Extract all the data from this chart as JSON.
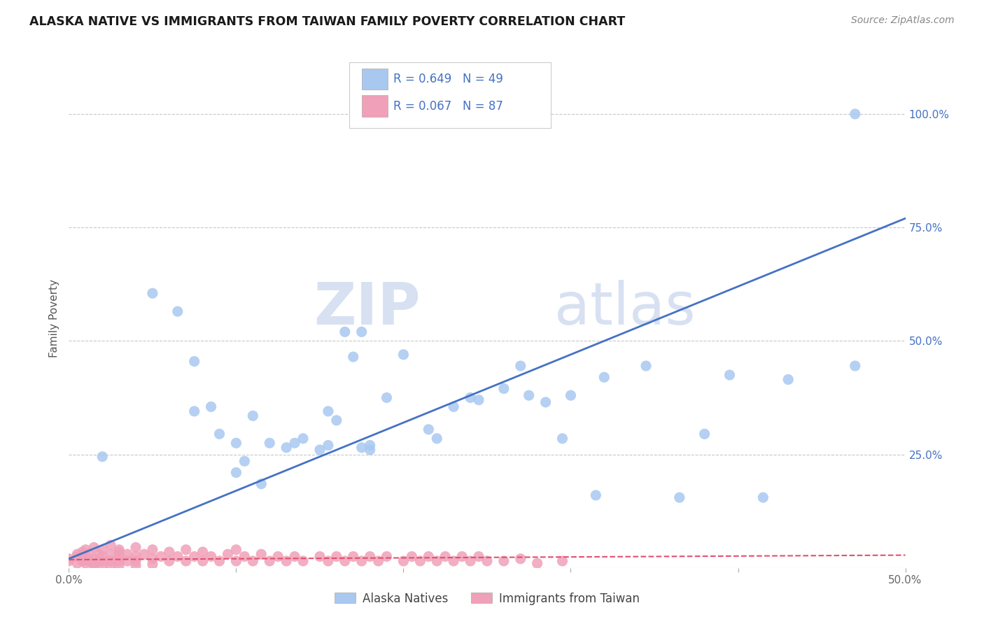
{
  "title": "ALASKA NATIVE VS IMMIGRANTS FROM TAIWAN FAMILY POVERTY CORRELATION CHART",
  "source": "Source: ZipAtlas.com",
  "ylabel": "Family Poverty",
  "xlim": [
    0.0,
    0.5
  ],
  "ylim": [
    0.0,
    1.1
  ],
  "ytick_vals": [
    0.0,
    0.25,
    0.5,
    0.75,
    1.0
  ],
  "xtick_vals": [
    0.0,
    0.1,
    0.2,
    0.3,
    0.4,
    0.5
  ],
  "xtick_labels": [
    "0.0%",
    "",
    "",
    "",
    "",
    "50.0%"
  ],
  "ytick_labels_right": [
    "",
    "25.0%",
    "50.0%",
    "75.0%",
    "100.0%"
  ],
  "legend_r1": "R = 0.649",
  "legend_n1": "N = 49",
  "legend_r2": "R = 0.067",
  "legend_n2": "N = 87",
  "legend_label1": "Alaska Natives",
  "legend_label2": "Immigrants from Taiwan",
  "color_blue": "#A8C8F0",
  "color_pink": "#F0A0B8",
  "color_blue_text": "#4472C4",
  "trendline1_color": "#4472C4",
  "trendline2_color": "#E05070",
  "watermark_zip": "ZIP",
  "watermark_atlas": "atlas",
  "blue_scatter_x": [
    0.02,
    0.05,
    0.065,
    0.075,
    0.075,
    0.085,
    0.09,
    0.1,
    0.1,
    0.105,
    0.11,
    0.115,
    0.12,
    0.13,
    0.135,
    0.14,
    0.15,
    0.155,
    0.155,
    0.16,
    0.165,
    0.17,
    0.175,
    0.18,
    0.18,
    0.19,
    0.2,
    0.215,
    0.22,
    0.23,
    0.24,
    0.245,
    0.26,
    0.27,
    0.275,
    0.285,
    0.295,
    0.3,
    0.315,
    0.32,
    0.345,
    0.365,
    0.38,
    0.395,
    0.415,
    0.43,
    0.47,
    0.47,
    0.175
  ],
  "blue_scatter_y": [
    0.245,
    0.605,
    0.565,
    0.455,
    0.345,
    0.355,
    0.295,
    0.275,
    0.21,
    0.235,
    0.335,
    0.185,
    0.275,
    0.265,
    0.275,
    0.285,
    0.26,
    0.345,
    0.27,
    0.325,
    0.52,
    0.465,
    0.265,
    0.26,
    0.27,
    0.375,
    0.47,
    0.305,
    0.285,
    0.355,
    0.375,
    0.37,
    0.395,
    0.445,
    0.38,
    0.365,
    0.285,
    0.38,
    0.16,
    0.42,
    0.445,
    0.155,
    0.295,
    0.425,
    0.155,
    0.415,
    0.445,
    1.0,
    0.52
  ],
  "pink_scatter_x": [
    0.0,
    0.0,
    0.005,
    0.005,
    0.005,
    0.008,
    0.008,
    0.01,
    0.01,
    0.01,
    0.012,
    0.012,
    0.015,
    0.015,
    0.015,
    0.015,
    0.018,
    0.018,
    0.02,
    0.02,
    0.02,
    0.02,
    0.025,
    0.025,
    0.025,
    0.025,
    0.03,
    0.03,
    0.03,
    0.03,
    0.03,
    0.035,
    0.035,
    0.04,
    0.04,
    0.04,
    0.04,
    0.045,
    0.05,
    0.05,
    0.05,
    0.055,
    0.06,
    0.06,
    0.065,
    0.07,
    0.07,
    0.075,
    0.08,
    0.08,
    0.085,
    0.09,
    0.095,
    0.1,
    0.1,
    0.105,
    0.11,
    0.115,
    0.12,
    0.125,
    0.13,
    0.135,
    0.14,
    0.15,
    0.155,
    0.16,
    0.165,
    0.17,
    0.175,
    0.18,
    0.185,
    0.19,
    0.2,
    0.205,
    0.21,
    0.215,
    0.22,
    0.225,
    0.23,
    0.235,
    0.24,
    0.245,
    0.25,
    0.26,
    0.27,
    0.28,
    0.295
  ],
  "pink_scatter_y": [
    0.02,
    0.015,
    0.03,
    0.025,
    0.01,
    0.035,
    0.015,
    0.04,
    0.025,
    0.01,
    0.03,
    0.015,
    0.045,
    0.02,
    0.01,
    0.005,
    0.03,
    0.015,
    0.04,
    0.025,
    0.015,
    0.005,
    0.05,
    0.03,
    0.015,
    0.005,
    0.04,
    0.025,
    0.015,
    0.035,
    0.005,
    0.03,
    0.015,
    0.045,
    0.025,
    0.015,
    0.005,
    0.03,
    0.04,
    0.02,
    0.008,
    0.025,
    0.035,
    0.015,
    0.025,
    0.04,
    0.015,
    0.025,
    0.035,
    0.015,
    0.025,
    0.015,
    0.03,
    0.04,
    0.015,
    0.025,
    0.015,
    0.03,
    0.015,
    0.025,
    0.015,
    0.025,
    0.015,
    0.025,
    0.015,
    0.025,
    0.015,
    0.025,
    0.015,
    0.025,
    0.015,
    0.025,
    0.015,
    0.025,
    0.015,
    0.025,
    0.015,
    0.025,
    0.015,
    0.025,
    0.015,
    0.025,
    0.015,
    0.015,
    0.02,
    0.01,
    0.015
  ],
  "trendline1_x": [
    0.0,
    0.5
  ],
  "trendline1_y": [
    0.02,
    0.77
  ],
  "trendline2_x": [
    0.0,
    0.5
  ],
  "trendline2_y": [
    0.018,
    0.028
  ]
}
